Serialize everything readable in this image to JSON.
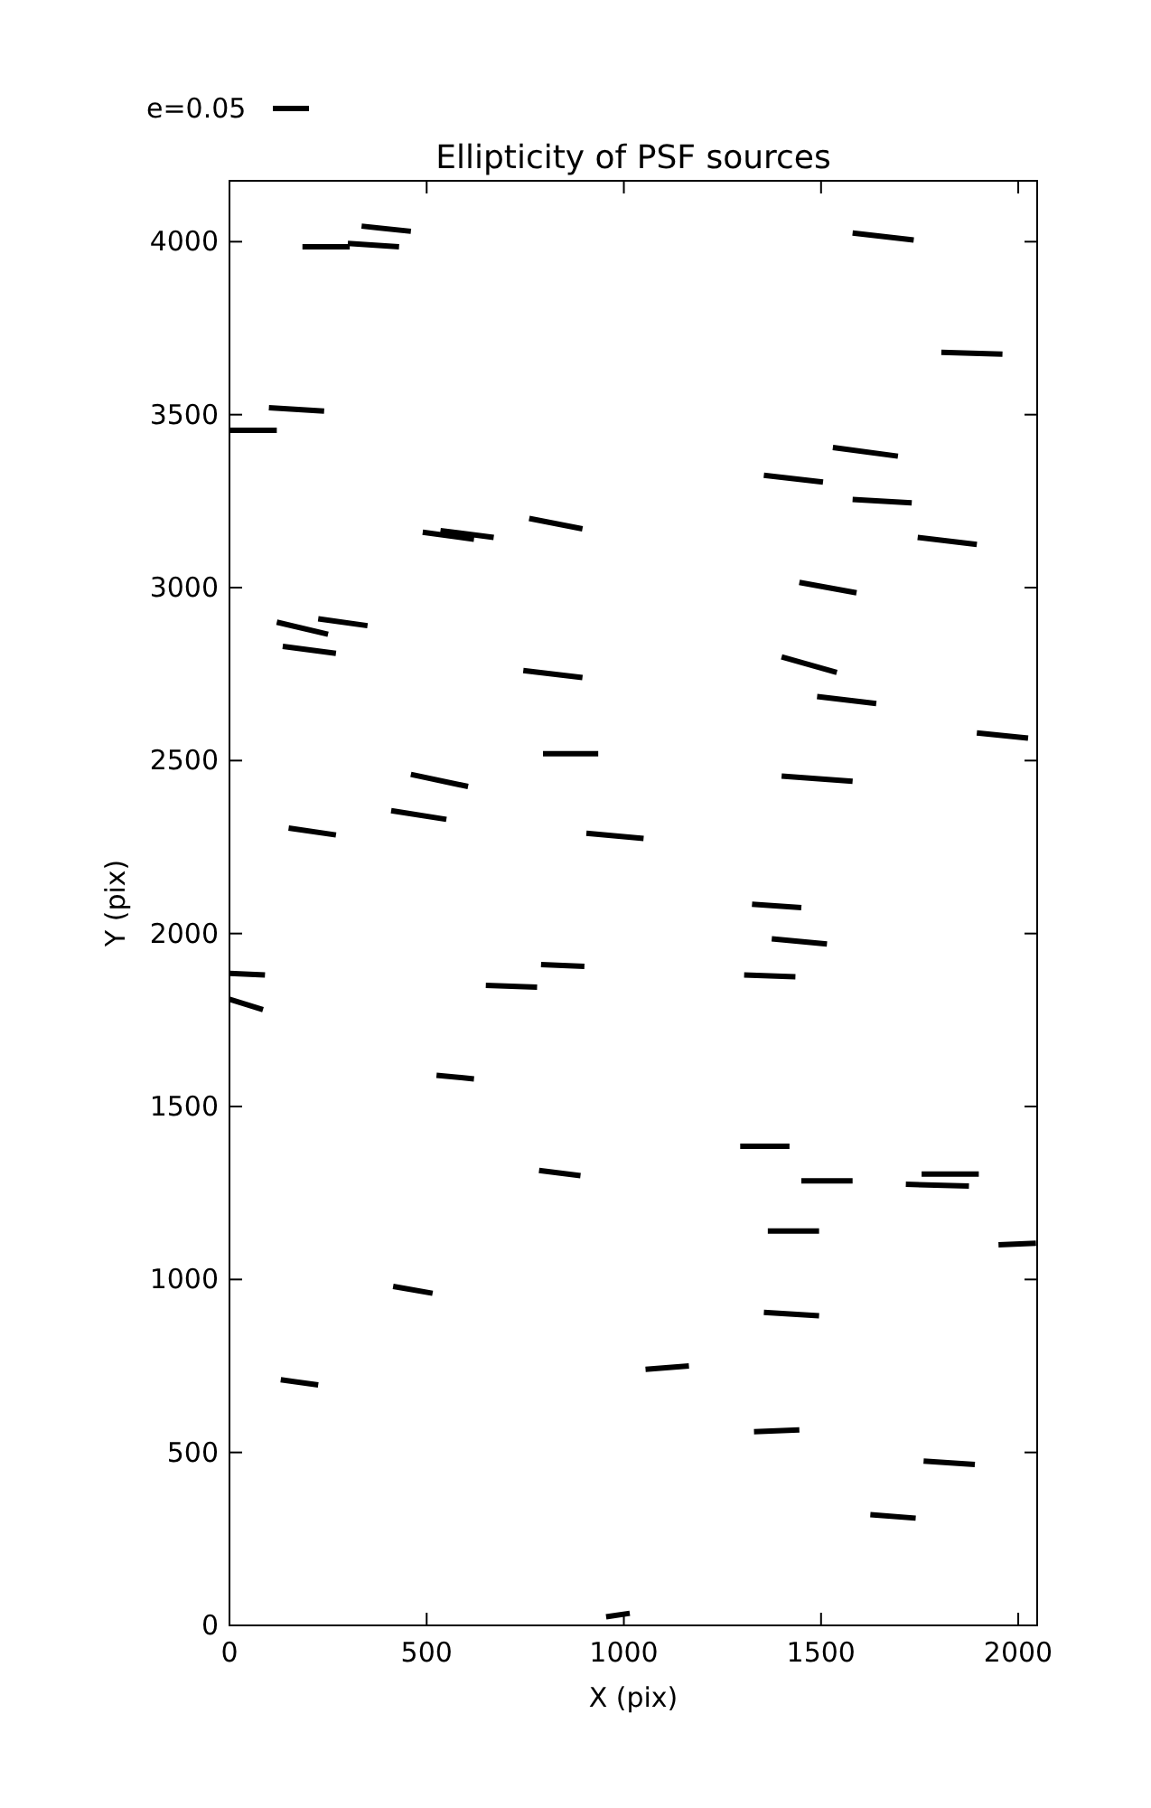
{
  "chart_data": {
    "type": "line",
    "title": "Ellipticity of PSF sources",
    "xlabel": "X (pix)",
    "ylabel": "Y (pix)",
    "xlim": [
      0,
      2048
    ],
    "ylim": [
      0,
      4176
    ],
    "xticks": [
      0,
      500,
      1000,
      1500,
      2000
    ],
    "yticks": [
      0,
      500,
      1000,
      1500,
      2000,
      2500,
      3000,
      3500,
      4000
    ],
    "grid": false,
    "legend": "top left",
    "marker": "none",
    "line_style": "solid",
    "color": "#000000",
    "series": [
      {
        "name": "e=0.05",
        "x": [
          185,
          305
        ],
        "values": [
          3985,
          3985
        ]
      },
      {
        "x": [
          300,
          430
        ],
        "values": [
          3995,
          3985
        ]
      },
      {
        "x": [
          335,
          460
        ],
        "values": [
          4045,
          4030
        ]
      },
      {
        "x": [
          1580,
          1735
        ],
        "values": [
          4025,
          4005
        ]
      },
      {
        "x": [
          1805,
          1960
        ],
        "values": [
          3680,
          3675
        ]
      },
      {
        "x": [
          100,
          240
        ],
        "values": [
          3520,
          3510
        ]
      },
      {
        "x": [
          0,
          120
        ],
        "values": [
          3455,
          3455
        ]
      },
      {
        "x": [
          1530,
          1695
        ],
        "values": [
          3405,
          3380
        ]
      },
      {
        "x": [
          1355,
          1505
        ],
        "values": [
          3325,
          3305
        ]
      },
      {
        "x": [
          1580,
          1730
        ],
        "values": [
          3255,
          3245
        ]
      },
      {
        "x": [
          490,
          620
        ],
        "values": [
          3160,
          3140
        ]
      },
      {
        "x": [
          535,
          670
        ],
        "values": [
          3165,
          3145
        ]
      },
      {
        "x": [
          760,
          895
        ],
        "values": [
          3200,
          3170
        ]
      },
      {
        "x": [
          1745,
          1895
        ],
        "values": [
          3145,
          3125
        ]
      },
      {
        "x": [
          1445,
          1590
        ],
        "values": [
          3015,
          2985
        ]
      },
      {
        "x": [
          120,
          250
        ],
        "values": [
          2900,
          2865
        ]
      },
      {
        "x": [
          225,
          350
        ],
        "values": [
          2910,
          2890
        ]
      },
      {
        "x": [
          135,
          270
        ],
        "values": [
          2830,
          2810
        ]
      },
      {
        "x": [
          1400,
          1540
        ],
        "values": [
          2800,
          2755
        ]
      },
      {
        "x": [
          745,
          895
        ],
        "values": [
          2760,
          2740
        ]
      },
      {
        "x": [
          1490,
          1640
        ],
        "values": [
          2685,
          2665
        ]
      },
      {
        "x": [
          1895,
          2025
        ],
        "values": [
          2580,
          2565
        ]
      },
      {
        "x": [
          795,
          935
        ],
        "values": [
          2520,
          2520
        ]
      },
      {
        "x": [
          1400,
          1580
        ],
        "values": [
          2455,
          2440
        ]
      },
      {
        "x": [
          460,
          605
        ],
        "values": [
          2460,
          2425
        ]
      },
      {
        "x": [
          410,
          550
        ],
        "values": [
          2355,
          2330
        ]
      },
      {
        "x": [
          905,
          1050
        ],
        "values": [
          2290,
          2275
        ]
      },
      {
        "x": [
          150,
          270
        ],
        "values": [
          2305,
          2285
        ]
      },
      {
        "x": [
          1325,
          1450
        ],
        "values": [
          2085,
          2075
        ]
      },
      {
        "x": [
          1375,
          1515
        ],
        "values": [
          1985,
          1970
        ]
      },
      {
        "x": [
          790,
          900
        ],
        "values": [
          1910,
          1905
        ]
      },
      {
        "x": [
          0,
          90
        ],
        "values": [
          1885,
          1880
        ]
      },
      {
        "x": [
          1305,
          1435
        ],
        "values": [
          1880,
          1875
        ]
      },
      {
        "x": [
          650,
          780
        ],
        "values": [
          1850,
          1845
        ]
      },
      {
        "x": [
          0,
          85
        ],
        "values": [
          1810,
          1780
        ]
      },
      {
        "x": [
          525,
          620
        ],
        "values": [
          1590,
          1580
        ]
      },
      {
        "x": [
          1295,
          1420
        ],
        "values": [
          1385,
          1385
        ]
      },
      {
        "x": [
          785,
          890
        ],
        "values": [
          1315,
          1300
        ]
      },
      {
        "x": [
          1450,
          1580
        ],
        "values": [
          1285,
          1285
        ]
      },
      {
        "x": [
          1755,
          1900
        ],
        "values": [
          1305,
          1305
        ]
      },
      {
        "x": [
          1715,
          1875
        ],
        "values": [
          1275,
          1270
        ]
      },
      {
        "x": [
          1365,
          1495
        ],
        "values": [
          1140,
          1140
        ]
      },
      {
        "x": [
          1950,
          2045
        ],
        "values": [
          1100,
          1105
        ]
      },
      {
        "x": [
          1355,
          1495
        ],
        "values": [
          905,
          895
        ]
      },
      {
        "x": [
          415,
          515
        ],
        "values": [
          980,
          960
        ]
      },
      {
        "x": [
          1055,
          1165
        ],
        "values": [
          740,
          750
        ]
      },
      {
        "x": [
          130,
          225
        ],
        "values": [
          710,
          695
        ]
      },
      {
        "x": [
          1330,
          1445
        ],
        "values": [
          560,
          565
        ]
      },
      {
        "x": [
          1760,
          1890
        ],
        "values": [
          475,
          465
        ]
      },
      {
        "x": [
          1625,
          1740
        ],
        "values": [
          320,
          310
        ]
      },
      {
        "x": [
          955,
          1015
        ],
        "values": [
          25,
          35
        ]
      }
    ]
  }
}
